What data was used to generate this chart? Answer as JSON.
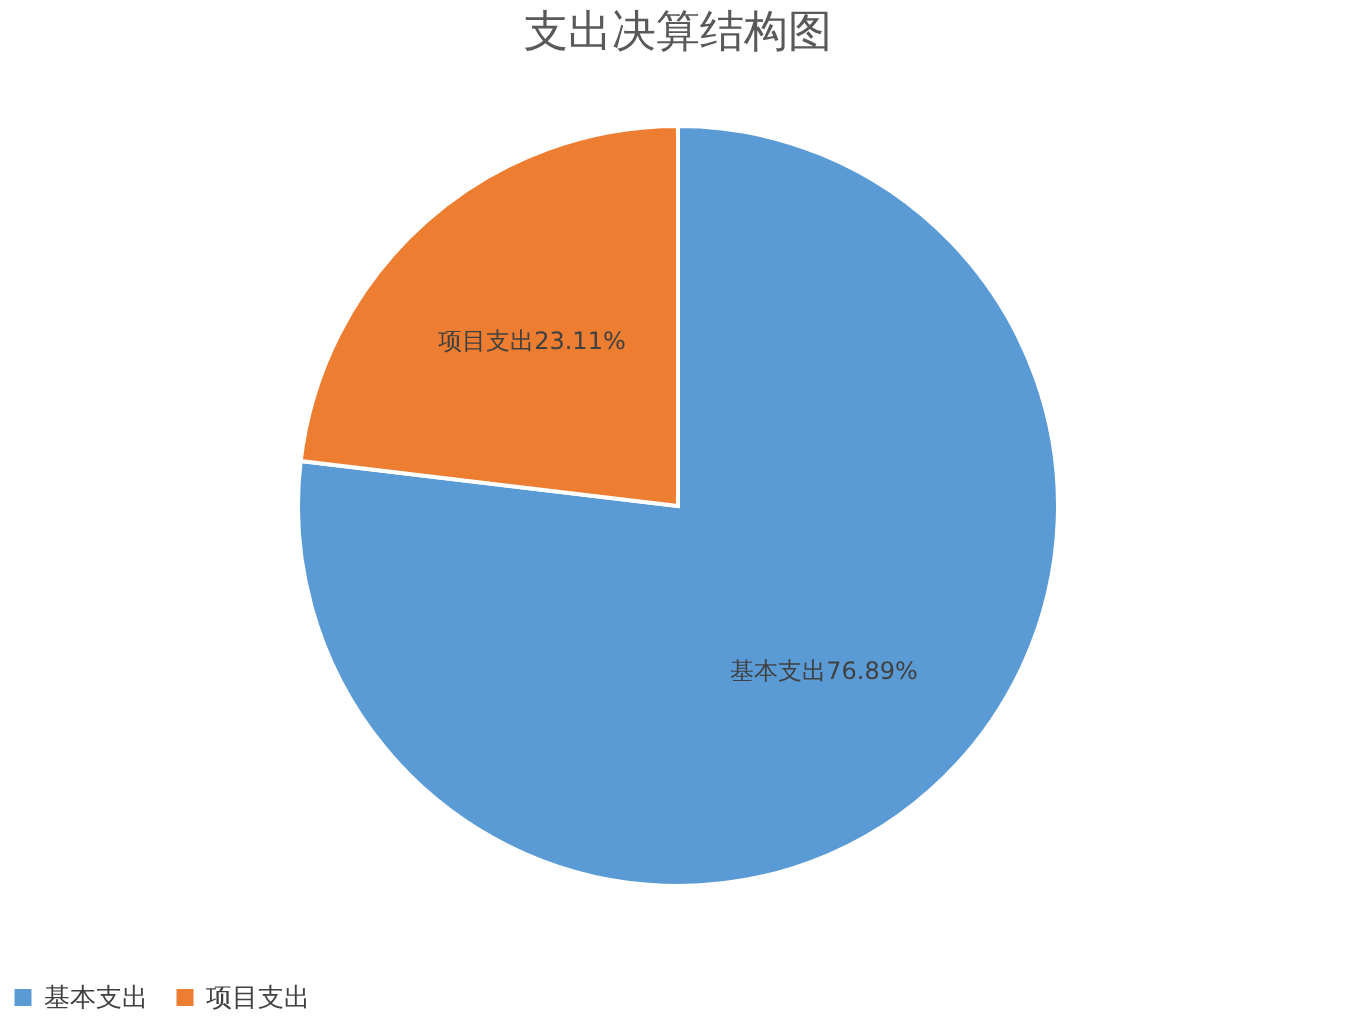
{
  "chart_data": {
    "type": "pie",
    "title": "支出决算结构图",
    "categories": [
      "基本支出",
      "项目支出"
    ],
    "values": [
      76.89,
      23.11
    ],
    "colors": [
      "#5b9bd5",
      "#ed7d31"
    ],
    "value_labels": [
      "76.89%",
      "23.11%"
    ],
    "legend": "bottom"
  }
}
